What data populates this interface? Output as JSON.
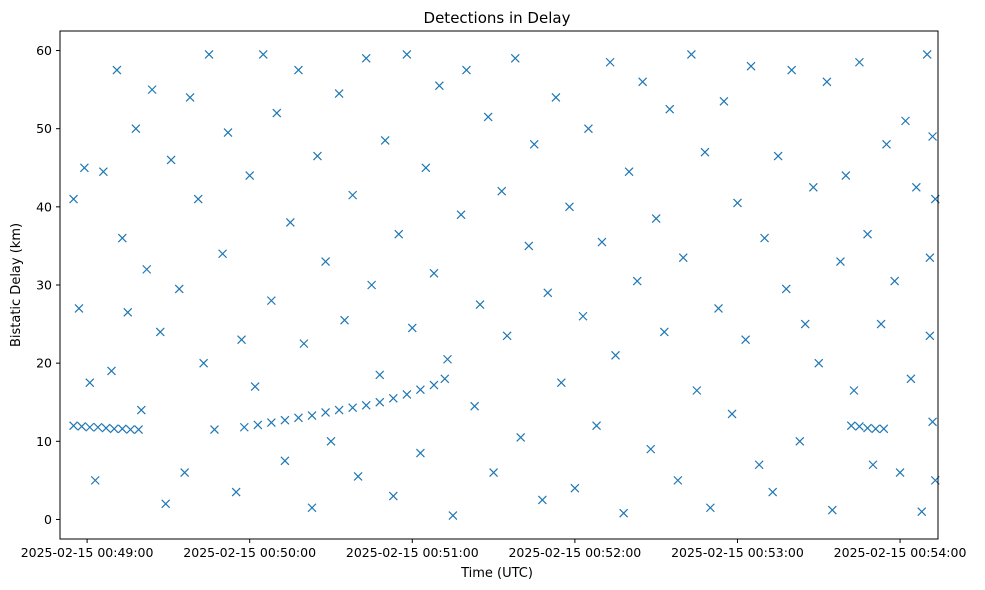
{
  "chart_data": {
    "type": "scatter",
    "title": "Detections in Delay",
    "xlabel": "Time (UTC)",
    "ylabel": "Bistatic Delay (km)",
    "marker": "x",
    "color": "#1f77b4",
    "xlim": [
      "2025-02-15 00:48:50",
      "2025-02-15 00:54:14"
    ],
    "ylim": [
      -2.5,
      62.5
    ],
    "x_ticks": [
      "2025-02-15 00:49:00",
      "2025-02-15 00:50:00",
      "2025-02-15 00:51:00",
      "2025-02-15 00:52:00",
      "2025-02-15 00:53:00",
      "2025-02-15 00:54:00"
    ],
    "y_ticks": [
      0,
      10,
      20,
      30,
      40,
      50,
      60
    ],
    "grid": false,
    "legend": "none",
    "series": [
      {
        "points": [
          [
            "2025-02-15 00:48:55",
            12.0
          ],
          [
            "2025-02-15 00:48:58",
            11.9
          ],
          [
            "2025-02-15 00:49:01",
            11.8
          ],
          [
            "2025-02-15 00:49:04",
            11.8
          ],
          [
            "2025-02-15 00:49:07",
            11.7
          ],
          [
            "2025-02-15 00:49:10",
            11.6
          ],
          [
            "2025-02-15 00:49:13",
            11.6
          ],
          [
            "2025-02-15 00:49:16",
            11.5
          ],
          [
            "2025-02-15 00:49:19",
            11.5
          ],
          [
            "2025-02-15 00:49:58",
            11.8
          ],
          [
            "2025-02-15 00:50:03",
            12.1
          ],
          [
            "2025-02-15 00:50:08",
            12.4
          ],
          [
            "2025-02-15 00:50:13",
            12.7
          ],
          [
            "2025-02-15 00:50:18",
            13.0
          ],
          [
            "2025-02-15 00:50:23",
            13.3
          ],
          [
            "2025-02-15 00:50:28",
            13.7
          ],
          [
            "2025-02-15 00:50:33",
            14.0
          ],
          [
            "2025-02-15 00:50:38",
            14.3
          ],
          [
            "2025-02-15 00:50:43",
            14.6
          ],
          [
            "2025-02-15 00:50:48",
            15.0
          ],
          [
            "2025-02-15 00:50:53",
            15.5
          ],
          [
            "2025-02-15 00:50:58",
            16.0
          ],
          [
            "2025-02-15 00:51:03",
            16.6
          ],
          [
            "2025-02-15 00:51:08",
            17.2
          ],
          [
            "2025-02-15 00:51:12",
            18.0
          ],
          [
            "2025-02-15 00:53:42",
            12.0
          ],
          [
            "2025-02-15 00:53:45",
            11.9
          ],
          [
            "2025-02-15 00:53:48",
            11.7
          ],
          [
            "2025-02-15 00:53:51",
            11.6
          ],
          [
            "2025-02-15 00:53:54",
            11.6
          ],
          [
            "2025-02-15 00:48:55",
            41.0
          ],
          [
            "2025-02-15 00:48:57",
            27.0
          ],
          [
            "2025-02-15 00:48:59",
            45.0
          ],
          [
            "2025-02-15 00:49:01",
            17.5
          ],
          [
            "2025-02-15 00:49:03",
            5.0
          ],
          [
            "2025-02-15 00:49:06",
            44.5
          ],
          [
            "2025-02-15 00:49:09",
            19.0
          ],
          [
            "2025-02-15 00:49:11",
            57.5
          ],
          [
            "2025-02-15 00:49:13",
            36.0
          ],
          [
            "2025-02-15 00:49:15",
            26.5
          ],
          [
            "2025-02-15 00:49:18",
            50.0
          ],
          [
            "2025-02-15 00:49:20",
            14.0
          ],
          [
            "2025-02-15 00:49:22",
            32.0
          ],
          [
            "2025-02-15 00:49:24",
            55.0
          ],
          [
            "2025-02-15 00:49:27",
            24.0
          ],
          [
            "2025-02-15 00:49:29",
            2.0
          ],
          [
            "2025-02-15 00:49:31",
            46.0
          ],
          [
            "2025-02-15 00:49:34",
            29.5
          ],
          [
            "2025-02-15 00:49:36",
            6.0
          ],
          [
            "2025-02-15 00:49:38",
            54.0
          ],
          [
            "2025-02-15 00:49:41",
            41.0
          ],
          [
            "2025-02-15 00:49:43",
            20.0
          ],
          [
            "2025-02-15 00:49:45",
            59.5
          ],
          [
            "2025-02-15 00:49:47",
            11.5
          ],
          [
            "2025-02-15 00:49:50",
            34.0
          ],
          [
            "2025-02-15 00:49:52",
            49.5
          ],
          [
            "2025-02-15 00:49:55",
            3.5
          ],
          [
            "2025-02-15 00:49:57",
            23.0
          ],
          [
            "2025-02-15 00:50:00",
            44.0
          ],
          [
            "2025-02-15 00:50:02",
            17.0
          ],
          [
            "2025-02-15 00:50:05",
            59.5
          ],
          [
            "2025-02-15 00:50:08",
            28.0
          ],
          [
            "2025-02-15 00:50:10",
            52.0
          ],
          [
            "2025-02-15 00:50:13",
            7.5
          ],
          [
            "2025-02-15 00:50:15",
            38.0
          ],
          [
            "2025-02-15 00:50:18",
            57.5
          ],
          [
            "2025-02-15 00:50:20",
            22.5
          ],
          [
            "2025-02-15 00:50:23",
            1.5
          ],
          [
            "2025-02-15 00:50:25",
            46.5
          ],
          [
            "2025-02-15 00:50:28",
            33.0
          ],
          [
            "2025-02-15 00:50:30",
            10.0
          ],
          [
            "2025-02-15 00:50:33",
            54.5
          ],
          [
            "2025-02-15 00:50:35",
            25.5
          ],
          [
            "2025-02-15 00:50:38",
            41.5
          ],
          [
            "2025-02-15 00:50:40",
            5.5
          ],
          [
            "2025-02-15 00:50:43",
            59.0
          ],
          [
            "2025-02-15 00:50:45",
            30.0
          ],
          [
            "2025-02-15 00:50:48",
            18.5
          ],
          [
            "2025-02-15 00:50:50",
            48.5
          ],
          [
            "2025-02-15 00:50:53",
            3.0
          ],
          [
            "2025-02-15 00:50:55",
            36.5
          ],
          [
            "2025-02-15 00:50:58",
            59.5
          ],
          [
            "2025-02-15 00:51:00",
            24.5
          ],
          [
            "2025-02-15 00:51:03",
            8.5
          ],
          [
            "2025-02-15 00:51:05",
            45.0
          ],
          [
            "2025-02-15 00:51:08",
            31.5
          ],
          [
            "2025-02-15 00:51:10",
            55.5
          ],
          [
            "2025-02-15 00:51:13",
            20.5
          ],
          [
            "2025-02-15 00:51:15",
            0.5
          ],
          [
            "2025-02-15 00:51:18",
            39.0
          ],
          [
            "2025-02-15 00:51:20",
            57.5
          ],
          [
            "2025-02-15 00:51:23",
            14.5
          ],
          [
            "2025-02-15 00:51:25",
            27.5
          ],
          [
            "2025-02-15 00:51:28",
            51.5
          ],
          [
            "2025-02-15 00:51:30",
            6.0
          ],
          [
            "2025-02-15 00:51:33",
            42.0
          ],
          [
            "2025-02-15 00:51:35",
            23.5
          ],
          [
            "2025-02-15 00:51:38",
            59.0
          ],
          [
            "2025-02-15 00:51:40",
            10.5
          ],
          [
            "2025-02-15 00:51:43",
            35.0
          ],
          [
            "2025-02-15 00:51:45",
            48.0
          ],
          [
            "2025-02-15 00:51:48",
            2.5
          ],
          [
            "2025-02-15 00:51:50",
            29.0
          ],
          [
            "2025-02-15 00:51:53",
            54.0
          ],
          [
            "2025-02-15 00:51:55",
            17.5
          ],
          [
            "2025-02-15 00:51:58",
            40.0
          ],
          [
            "2025-02-15 00:52:00",
            4.0
          ],
          [
            "2025-02-15 00:52:03",
            26.0
          ],
          [
            "2025-02-15 00:52:05",
            50.0
          ],
          [
            "2025-02-15 00:52:08",
            12.0
          ],
          [
            "2025-02-15 00:52:10",
            35.5
          ],
          [
            "2025-02-15 00:52:13",
            58.5
          ],
          [
            "2025-02-15 00:52:15",
            21.0
          ],
          [
            "2025-02-15 00:52:18",
            0.8
          ],
          [
            "2025-02-15 00:52:20",
            44.5
          ],
          [
            "2025-02-15 00:52:23",
            30.5
          ],
          [
            "2025-02-15 00:52:25",
            56.0
          ],
          [
            "2025-02-15 00:52:28",
            9.0
          ],
          [
            "2025-02-15 00:52:30",
            38.5
          ],
          [
            "2025-02-15 00:52:33",
            24.0
          ],
          [
            "2025-02-15 00:52:35",
            52.5
          ],
          [
            "2025-02-15 00:52:38",
            5.0
          ],
          [
            "2025-02-15 00:52:40",
            33.5
          ],
          [
            "2025-02-15 00:52:43",
            59.5
          ],
          [
            "2025-02-15 00:52:45",
            16.5
          ],
          [
            "2025-02-15 00:52:48",
            47.0
          ],
          [
            "2025-02-15 00:52:50",
            1.5
          ],
          [
            "2025-02-15 00:52:53",
            27.0
          ],
          [
            "2025-02-15 00:52:55",
            53.5
          ],
          [
            "2025-02-15 00:52:58",
            13.5
          ],
          [
            "2025-02-15 00:53:00",
            40.5
          ],
          [
            "2025-02-15 00:53:03",
            23.0
          ],
          [
            "2025-02-15 00:53:05",
            58.0
          ],
          [
            "2025-02-15 00:53:08",
            7.0
          ],
          [
            "2025-02-15 00:53:10",
            36.0
          ],
          [
            "2025-02-15 00:53:13",
            3.5
          ],
          [
            "2025-02-15 00:53:15",
            46.5
          ],
          [
            "2025-02-15 00:53:18",
            29.5
          ],
          [
            "2025-02-15 00:53:20",
            57.5
          ],
          [
            "2025-02-15 00:53:23",
            10.0
          ],
          [
            "2025-02-15 00:53:25",
            25.0
          ],
          [
            "2025-02-15 00:53:28",
            42.5
          ],
          [
            "2025-02-15 00:53:30",
            20.0
          ],
          [
            "2025-02-15 00:53:33",
            56.0
          ],
          [
            "2025-02-15 00:53:35",
            1.2
          ],
          [
            "2025-02-15 00:53:38",
            33.0
          ],
          [
            "2025-02-15 00:53:40",
            44.0
          ],
          [
            "2025-02-15 00:53:43",
            16.5
          ],
          [
            "2025-02-15 00:53:45",
            58.5
          ],
          [
            "2025-02-15 00:53:48",
            36.5
          ],
          [
            "2025-02-15 00:53:50",
            7.0
          ],
          [
            "2025-02-15 00:53:53",
            25.0
          ],
          [
            "2025-02-15 00:53:55",
            48.0
          ],
          [
            "2025-02-15 00:53:58",
            30.5
          ],
          [
            "2025-02-15 00:54:00",
            6.0
          ],
          [
            "2025-02-15 00:54:02",
            51.0
          ],
          [
            "2025-02-15 00:54:04",
            18.0
          ],
          [
            "2025-02-15 00:54:06",
            42.5
          ],
          [
            "2025-02-15 00:54:08",
            1.0
          ],
          [
            "2025-02-15 00:54:10",
            59.5
          ],
          [
            "2025-02-15 00:54:11",
            33.5
          ],
          [
            "2025-02-15 00:54:12",
            12.5
          ],
          [
            "2025-02-15 00:54:13",
            41.0
          ],
          [
            "2025-02-15 00:54:13",
            5.0
          ],
          [
            "2025-02-15 00:54:12",
            49.0
          ],
          [
            "2025-02-15 00:54:11",
            23.5
          ]
        ]
      }
    ]
  }
}
